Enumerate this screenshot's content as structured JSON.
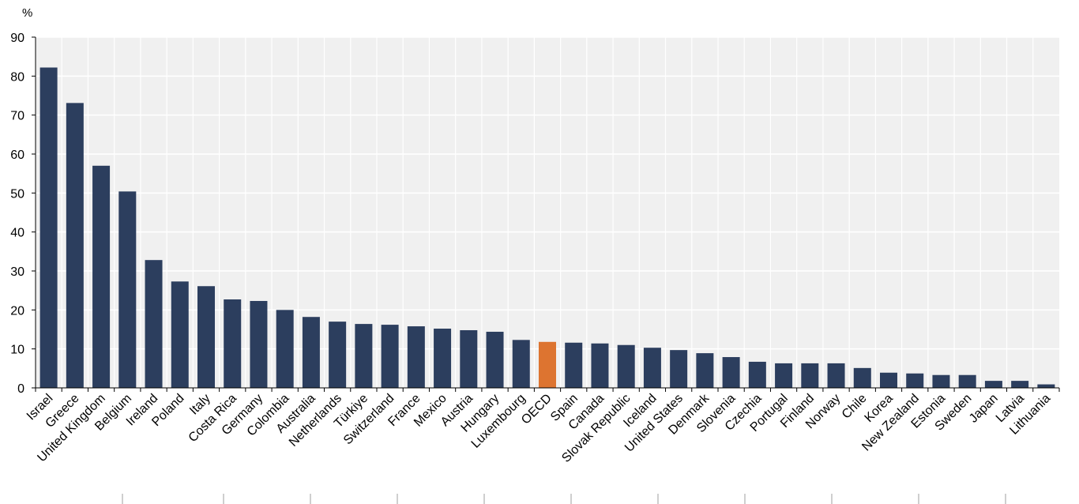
{
  "chart_data": {
    "type": "bar",
    "unit_label": "%",
    "ylim": [
      0,
      90
    ],
    "yticks": [
      0,
      10,
      20,
      30,
      40,
      50,
      60,
      70,
      80,
      90
    ],
    "grid": true,
    "categories": [
      "Israel",
      "Greece",
      "United Kingdom",
      "Belgium",
      "Ireland",
      "Poland",
      "Italy",
      "Costa Rica",
      "Germany",
      "Colombia",
      "Australia",
      "Netherlands",
      "Türkiye",
      "Switzerland",
      "France",
      "Mexico",
      "Austria",
      "Hungary",
      "Luxembourg",
      "OECD",
      "Spain",
      "Canada",
      "Slovak Republic",
      "Iceland",
      "United States",
      "Denmark",
      "Slovenia",
      "Czechia",
      "Portugal",
      "Finland",
      "Norway",
      "Chile",
      "Korea",
      "New Zealand",
      "Estonia",
      "Sweden",
      "Japan",
      "Latvia",
      "Lithuania"
    ],
    "values": [
      82.2,
      73.1,
      57.0,
      50.4,
      32.8,
      27.3,
      26.1,
      22.7,
      22.3,
      20.0,
      18.2,
      17.0,
      16.4,
      16.2,
      15.8,
      15.2,
      14.8,
      14.4,
      12.3,
      11.8,
      11.6,
      11.4,
      11.0,
      10.3,
      9.7,
      8.9,
      7.9,
      6.7,
      6.3,
      6.3,
      6.3,
      5.1,
      3.9,
      3.7,
      3.3,
      3.3,
      1.8,
      1.8,
      0.9
    ],
    "highlight_category": "OECD",
    "colors": {
      "bar": "#2c3e5e",
      "highlight": "#dd7430",
      "plot_bg": "#f0f0f0",
      "grid": "#ffffff",
      "axis": "#000000"
    }
  }
}
